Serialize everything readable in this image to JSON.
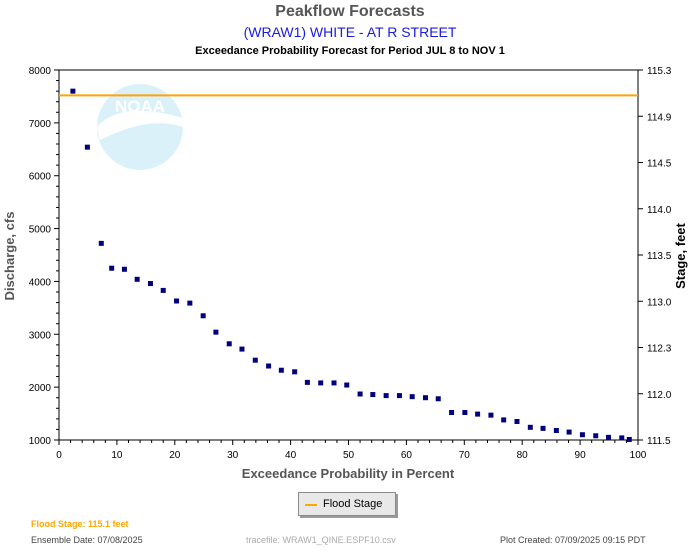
{
  "header": {
    "title": "Peakflow Forecasts",
    "subtitle": "(WRAW1) WHITE - AT R STREET",
    "period": "Exceedance Probability Forecast for Period JUL 8 to NOV 1"
  },
  "legend": {
    "flood_stage_label": "Flood Stage"
  },
  "footer": {
    "flood_stage_note": "Flood Stage: 115.1 feet",
    "ensemble_date": "Ensemble Date: 07/08/2025",
    "tracefile": "tracefile: WRAW1_QINE.ESPF10.csv",
    "plot_created": "Plot Created: 07/09/2025 09:15 PDT"
  },
  "watermark": {
    "logo_text": "NOAA"
  },
  "colors": {
    "flood_stage_line": "#ffa500",
    "points": "#00007f",
    "title": "#555555",
    "subtitle": "#1a1ae6",
    "watermark": "#bfe6f5"
  },
  "chart_data": {
    "type": "scatter",
    "xlabel": "Exceedance Probability in Percent",
    "ylabel": "Discharge, cfs",
    "y2label": "Stage, feet",
    "xlim": [
      0,
      100
    ],
    "ylim": [
      1000,
      8000
    ],
    "y2lim": [
      111.5,
      115.3
    ],
    "x_ticks": [
      "0",
      "10",
      "20",
      "30",
      "40",
      "50",
      "60",
      "70",
      "80",
      "90",
      "100"
    ],
    "y_ticks": [
      "1000",
      "2000",
      "3000",
      "4000",
      "5000",
      "6000",
      "7000",
      "8000"
    ],
    "y2_ticks": [
      "111.5",
      "112.0",
      "112.3",
      "113.0",
      "113.5",
      "114.0",
      "114.5",
      "114.9",
      "115.3"
    ],
    "flood_stage_cfs": 7520,
    "grid": false,
    "legend_position": "bottom-center",
    "series": [
      {
        "name": "Flood Stage",
        "type": "line"
      },
      {
        "type": "scatter",
        "x": [
          2.4,
          4.9,
          7.3,
          9.1,
          11.3,
          13.5,
          15.8,
          18.0,
          20.3,
          22.6,
          24.9,
          27.1,
          29.4,
          31.6,
          33.9,
          36.2,
          38.4,
          40.7,
          42.9,
          45.2,
          47.5,
          49.7,
          52.0,
          54.2,
          56.5,
          58.8,
          61.0,
          63.3,
          65.5,
          67.8,
          70.1,
          72.3,
          74.6,
          76.8,
          79.1,
          81.4,
          83.6,
          85.9,
          88.1,
          90.4,
          92.7,
          94.9,
          97.2,
          98.5
        ],
        "y": [
          7600,
          6540,
          4720,
          4250,
          4230,
          4040,
          3960,
          3830,
          3630,
          3590,
          3350,
          3040,
          2820,
          2720,
          2510,
          2400,
          2320,
          2290,
          2090,
          2080,
          2080,
          2040,
          1870,
          1860,
          1840,
          1840,
          1820,
          1800,
          1780,
          1520,
          1520,
          1490,
          1470,
          1380,
          1350,
          1240,
          1220,
          1180,
          1150,
          1100,
          1080,
          1050,
          1040,
          1010
        ]
      }
    ]
  }
}
